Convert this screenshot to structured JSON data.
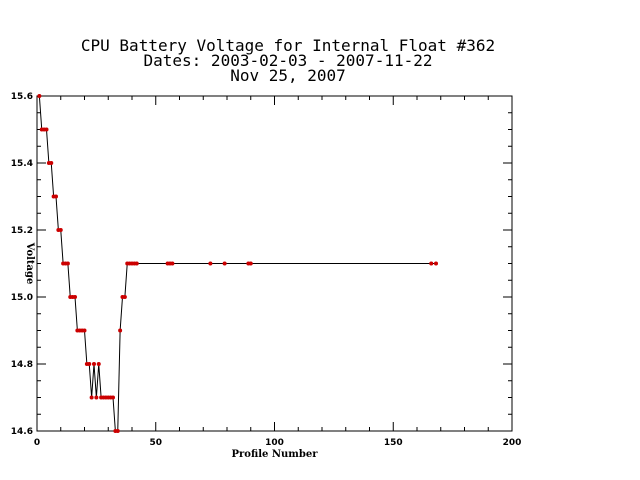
{
  "chart_data": {
    "type": "line",
    "title_lines": [
      "CPU Battery Voltage for Internal Float #362",
      "Dates:  2003-02-03 -  2007-11-22",
      "Nov 25, 2007"
    ],
    "xlabel": "Profile Number",
    "ylabel": "Voltage",
    "xlim": [
      0,
      200
    ],
    "ylim": [
      14.6,
      15.6
    ],
    "x_ticks": [
      0,
      50,
      100,
      150,
      200
    ],
    "x_tick_labels": [
      "0",
      "50",
      "100",
      "150",
      "200"
    ],
    "y_ticks": [
      14.6,
      14.8,
      15.0,
      15.2,
      15.4,
      15.6
    ],
    "y_tick_labels": [
      "14.6",
      "14.8",
      "15.0",
      "15.2",
      "15.4",
      "15.6"
    ],
    "grid": false,
    "line_color": "#000000",
    "marker_color": "#cc0000",
    "series": [
      {
        "x": [
          1,
          2,
          3,
          4,
          5,
          6,
          7,
          8,
          9,
          10,
          11,
          12,
          13,
          14,
          15,
          16,
          17,
          18,
          19,
          20,
          21,
          22,
          23,
          24,
          25,
          26,
          27,
          28,
          29,
          30,
          31,
          32,
          33,
          34,
          35,
          36,
          37,
          38,
          39,
          40,
          41,
          42,
          55,
          56,
          57,
          73,
          79,
          89,
          90,
          166,
          168
        ],
        "y": [
          15.6,
          15.5,
          15.5,
          15.5,
          15.4,
          15.4,
          15.3,
          15.3,
          15.2,
          15.2,
          15.1,
          15.1,
          15.1,
          15.0,
          15.0,
          15.0,
          14.9,
          14.9,
          14.9,
          14.9,
          14.8,
          14.8,
          14.7,
          14.8,
          14.7,
          14.8,
          14.7,
          14.7,
          14.7,
          14.7,
          14.7,
          14.7,
          14.6,
          14.6,
          14.9,
          15.0,
          15.0,
          15.1,
          15.1,
          15.1,
          15.1,
          15.1,
          15.1,
          15.1,
          15.1,
          15.1,
          15.1,
          15.1,
          15.1,
          15.1,
          15.1
        ]
      }
    ]
  }
}
